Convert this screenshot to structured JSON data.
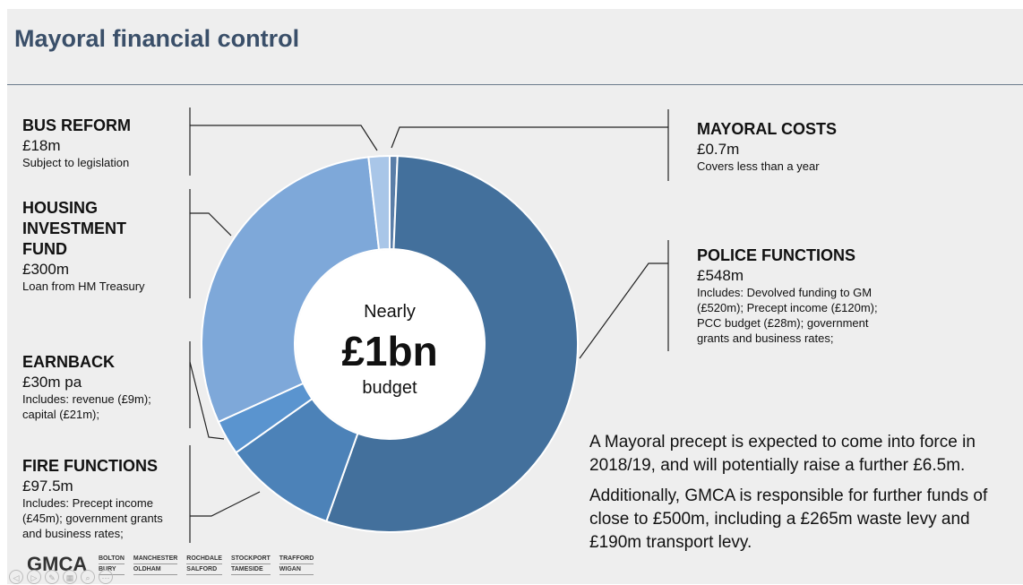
{
  "title": "Mayoral financial control",
  "chart_data": {
    "type": "pie",
    "donut": true,
    "center_text": {
      "line1": "Nearly",
      "line2": "£1bn",
      "line3": "budget"
    },
    "slices": [
      {
        "label": "MAYORAL COSTS",
        "value": 0.7,
        "color": "#5a7ea8"
      },
      {
        "label": "POLICE FUNCTIONS",
        "value": 548,
        "color": "#43709c"
      },
      {
        "label": "FIRE FUNCTIONS",
        "value": 97.5,
        "color": "#4c82b8"
      },
      {
        "label": "EARNBACK",
        "value": 30,
        "color": "#5a94cf"
      },
      {
        "label": "HOUSING INVESTMENT FUND",
        "value": 300,
        "color": "#7ea8d9"
      },
      {
        "label": "BUS REFORM",
        "value": 18,
        "color": "#a9c6e8"
      }
    ]
  },
  "labels": {
    "bus": {
      "head": "BUS REFORM",
      "amount": "£18m",
      "note": "Subject to legislation"
    },
    "housing": {
      "head1": "HOUSING",
      "head2": "INVESTMENT",
      "head3": "FUND",
      "amount": "£300m",
      "note": "Loan from HM Treasury"
    },
    "earnback": {
      "head": "EARNBACK",
      "amount": "£30m pa",
      "note1": "Includes: revenue (£9m);",
      "note2": "capital (£21m);"
    },
    "fire": {
      "head": "FIRE FUNCTIONS",
      "amount": "£97.5m",
      "note1": "Includes: Precept income",
      "note2": "(£45m); government grants",
      "note3": "and business rates;"
    },
    "mayoral": {
      "head": "MAYORAL COSTS",
      "amount": "£0.7m",
      "note": "Covers less than a year"
    },
    "police": {
      "head": "POLICE FUNCTIONS",
      "amount": "£548m",
      "note1": "Includes: Devolved funding to GM",
      "note2": "(£520m); Precept income (£120m);",
      "note3": "PCC budget (£28m); government",
      "note4": "grants and business rates;"
    }
  },
  "note": {
    "p1": "A Mayoral precept is expected to come into force in 2018/19, and will potentially raise a further £6.5m.",
    "p2": "Additionally, GMCA is responsible for further funds of close to £500m, including a £265m waste levy and £190m transport levy."
  },
  "footer": {
    "logo": "GMCA",
    "boroughs": [
      [
        "BOLTON",
        "BURY"
      ],
      [
        "MANCHESTER",
        "OLDHAM"
      ],
      [
        "ROCHDALE",
        "SALFORD"
      ],
      [
        "STOCKPORT",
        "TAMESIDE"
      ],
      [
        "TRAFFORD",
        "WIGAN"
      ]
    ]
  }
}
